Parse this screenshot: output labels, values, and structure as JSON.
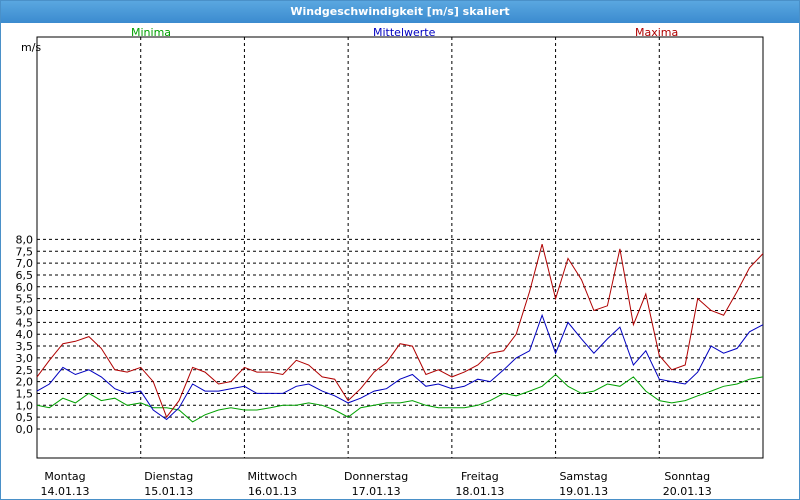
{
  "window": {
    "title": "Windgeschwindigkeit [m/s] skaliert"
  },
  "colors": {
    "background": "#ffffff",
    "grid": "#000000",
    "minima": "#00a000",
    "mittelwerte": "#0000c0",
    "maxima": "#b00000",
    "titlebar": "#3b8bcf"
  },
  "chart_data": {
    "type": "line",
    "title": "Windgeschwindigkeit [m/s] skaliert",
    "ylabel": "m/s",
    "xlabel": "",
    "ylim": [
      0,
      8.5
    ],
    "yticks": [
      "0,0",
      "0,5",
      "1,0",
      "1,5",
      "2,0",
      "2,5",
      "3,0",
      "3,5",
      "4,0",
      "4,5",
      "5,0",
      "5,5",
      "6,0",
      "6,5",
      "7,0",
      "7,5",
      "8,0"
    ],
    "xlim": [
      0,
      7
    ],
    "day_labels": [
      {
        "day": "Montag",
        "date": "14.01.13"
      },
      {
        "day": "Dienstag",
        "date": "15.01.13"
      },
      {
        "day": "Mittwoch",
        "date": "16.01.13"
      },
      {
        "day": "Donnerstag",
        "date": "17.01.13"
      },
      {
        "day": "Freitag",
        "date": "18.01.13"
      },
      {
        "day": "Samstag",
        "date": "19.01.13"
      },
      {
        "day": "Sonntag",
        "date": "20.01.13"
      }
    ],
    "legend": [
      "Minima",
      "Mittelwerte",
      "Maxima"
    ],
    "grid": true,
    "series": [
      {
        "name": "Minima",
        "color": "#00a000",
        "x": [
          0,
          0.12,
          0.25,
          0.37,
          0.5,
          0.62,
          0.75,
          0.87,
          1,
          1.12,
          1.25,
          1.37,
          1.5,
          1.62,
          1.75,
          1.87,
          2,
          2.12,
          2.25,
          2.37,
          2.5,
          2.62,
          2.75,
          2.87,
          3,
          3.12,
          3.25,
          3.37,
          3.5,
          3.62,
          3.75,
          3.87,
          4,
          4.12,
          4.25,
          4.37,
          4.5,
          4.62,
          4.75,
          4.87,
          5,
          5.12,
          5.25,
          5.37,
          5.5,
          5.62,
          5.75,
          5.87,
          6,
          6.12,
          6.25,
          6.37,
          6.5,
          6.62,
          6.75,
          6.87,
          7
        ],
        "y": [
          1.0,
          0.9,
          1.3,
          1.1,
          1.5,
          1.2,
          1.3,
          1.0,
          1.1,
          0.9,
          0.9,
          0.8,
          0.3,
          0.6,
          0.8,
          0.9,
          0.8,
          0.8,
          0.9,
          1.0,
          1.0,
          1.1,
          1.0,
          0.8,
          0.5,
          0.9,
          1.0,
          1.1,
          1.1,
          1.2,
          1.0,
          0.9,
          0.9,
          0.9,
          1.0,
          1.2,
          1.5,
          1.4,
          1.6,
          1.8,
          2.3,
          1.8,
          1.5,
          1.6,
          1.9,
          1.8,
          2.2,
          1.6,
          1.2,
          1.1,
          1.2,
          1.4,
          1.6,
          1.8,
          1.9,
          2.1,
          2.2
        ]
      },
      {
        "name": "Mittelwerte",
        "color": "#0000c0",
        "x": [
          0,
          0.12,
          0.25,
          0.37,
          0.5,
          0.62,
          0.75,
          0.87,
          1,
          1.12,
          1.25,
          1.37,
          1.5,
          1.62,
          1.75,
          1.87,
          2,
          2.12,
          2.25,
          2.37,
          2.5,
          2.62,
          2.75,
          2.87,
          3,
          3.12,
          3.25,
          3.37,
          3.5,
          3.62,
          3.75,
          3.87,
          4,
          4.12,
          4.25,
          4.37,
          4.5,
          4.62,
          4.75,
          4.87,
          5,
          5.12,
          5.25,
          5.37,
          5.5,
          5.62,
          5.75,
          5.87,
          6,
          6.12,
          6.25,
          6.37,
          6.5,
          6.62,
          6.75,
          6.87,
          7
        ],
        "y": [
          1.6,
          1.9,
          2.6,
          2.3,
          2.5,
          2.2,
          1.7,
          1.5,
          1.6,
          0.8,
          0.4,
          0.9,
          1.9,
          1.6,
          1.6,
          1.7,
          1.8,
          1.5,
          1.5,
          1.5,
          1.8,
          1.9,
          1.6,
          1.4,
          1.1,
          1.3,
          1.6,
          1.7,
          2.1,
          2.3,
          1.8,
          1.9,
          1.7,
          1.8,
          2.1,
          2.0,
          2.5,
          3.0,
          3.3,
          4.8,
          3.2,
          4.5,
          3.8,
          3.2,
          3.8,
          4.3,
          2.7,
          3.3,
          2.1,
          2.0,
          1.9,
          2.4,
          3.5,
          3.2,
          3.4,
          4.1,
          4.4
        ]
      },
      {
        "name": "Maxima",
        "color": "#b00000",
        "x": [
          0,
          0.12,
          0.25,
          0.37,
          0.5,
          0.62,
          0.75,
          0.87,
          1,
          1.12,
          1.25,
          1.37,
          1.5,
          1.62,
          1.75,
          1.87,
          2,
          2.12,
          2.25,
          2.37,
          2.5,
          2.62,
          2.75,
          2.87,
          3,
          3.12,
          3.25,
          3.37,
          3.5,
          3.62,
          3.75,
          3.87,
          4,
          4.12,
          4.25,
          4.37,
          4.5,
          4.62,
          4.75,
          4.87,
          5,
          5.12,
          5.25,
          5.37,
          5.5,
          5.62,
          5.75,
          5.87,
          6,
          6.12,
          6.25,
          6.37,
          6.5,
          6.62,
          6.75,
          6.87,
          7
        ],
        "y": [
          2.2,
          2.9,
          3.6,
          3.7,
          3.9,
          3.4,
          2.5,
          2.4,
          2.6,
          2.0,
          0.5,
          1.2,
          2.6,
          2.4,
          1.9,
          2.0,
          2.6,
          2.4,
          2.4,
          2.3,
          2.9,
          2.7,
          2.2,
          2.1,
          1.2,
          1.7,
          2.4,
          2.8,
          3.6,
          3.5,
          2.3,
          2.5,
          2.2,
          2.4,
          2.7,
          3.2,
          3.3,
          4.0,
          5.8,
          7.8,
          5.5,
          7.2,
          6.3,
          5.0,
          5.2,
          7.6,
          4.4,
          5.7,
          3.1,
          2.5,
          2.7,
          5.5,
          5.0,
          4.8,
          5.8,
          6.8,
          7.4
        ]
      }
    ]
  }
}
